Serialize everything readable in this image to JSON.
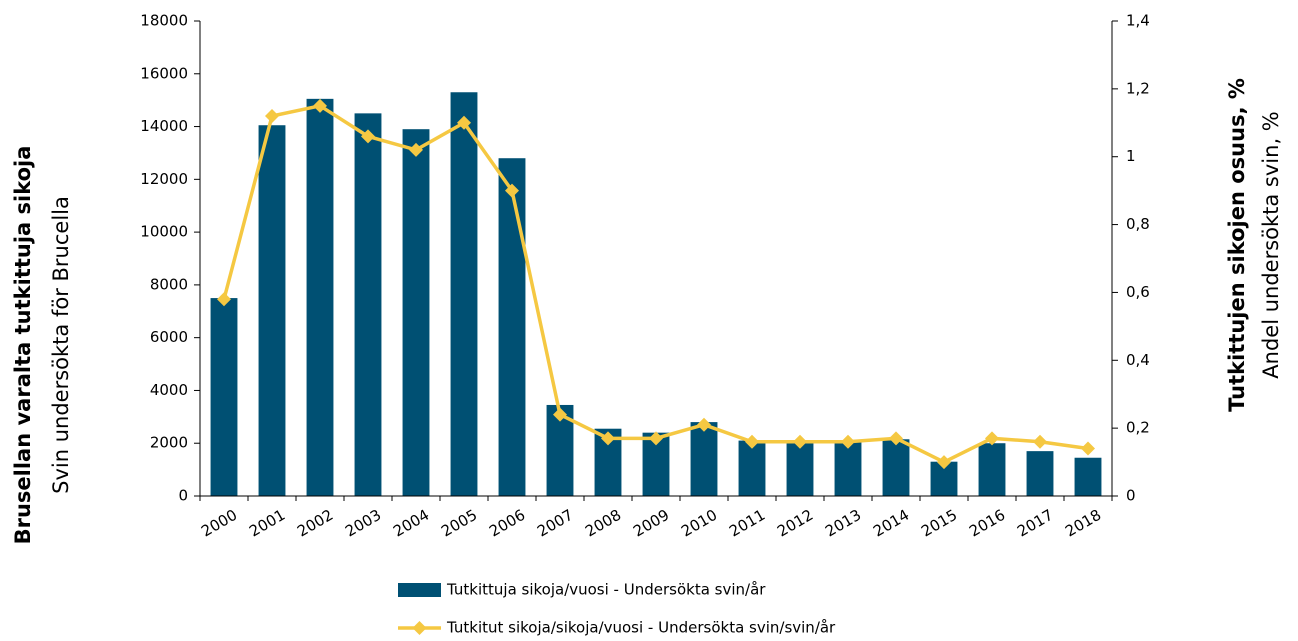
{
  "chart_data": {
    "type": "bar_line",
    "ylabel": [
      "Brusellan varalta tutkittuja sikoja",
      "Svin undersökta för Brucella"
    ],
    "y2label": [
      "Tutkittujen sikojen osuus, %",
      "Andel undersökta svin, %"
    ],
    "categories": [
      "2000",
      "2001",
      "2002",
      "2003",
      "2004",
      "2005",
      "2006",
      "2007",
      "2008",
      "2009",
      "2010",
      "2011",
      "2012",
      "2013",
      "2014",
      "2015",
      "2016",
      "2017",
      "2018"
    ],
    "series": [
      {
        "name": "Tutkittuja sikoja/vuosi - Undersökta svin/år",
        "type": "bar",
        "color": "#005073",
        "values": [
          7500,
          14050,
          15050,
          14500,
          13900,
          15300,
          12800,
          3450,
          2550,
          2400,
          2800,
          2100,
          2100,
          2050,
          2150,
          1300,
          2000,
          1700,
          1450
        ]
      },
      {
        "name": "Tutkitut sikoja/sikoja/vuosi - Undersökta svin/svin/år",
        "type": "line",
        "axis": "y2",
        "color": "#f5c842",
        "values": [
          0.58,
          1.12,
          1.15,
          1.06,
          1.02,
          1.1,
          0.9,
          0.24,
          0.17,
          0.17,
          0.21,
          0.16,
          0.16,
          0.16,
          0.17,
          0.1,
          0.17,
          0.16,
          0.14
        ]
      }
    ],
    "ylim": [
      0,
      18000
    ],
    "yticks": [
      0,
      2000,
      4000,
      6000,
      8000,
      10000,
      12000,
      14000,
      16000,
      18000
    ],
    "y2lim": [
      0,
      1.4
    ],
    "y2ticks": [
      0,
      {
        "value": 0.2,
        "label": "0,2"
      },
      {
        "value": 0.4,
        "label": "0,4"
      },
      {
        "value": 0.6,
        "label": "0,6"
      },
      {
        "value": 0.8,
        "label": "0,8"
      },
      1,
      {
        "value": 1.2,
        "label": "1,2"
      },
      {
        "value": 1.4,
        "label": "1,4"
      }
    ],
    "legend": "bottom"
  }
}
